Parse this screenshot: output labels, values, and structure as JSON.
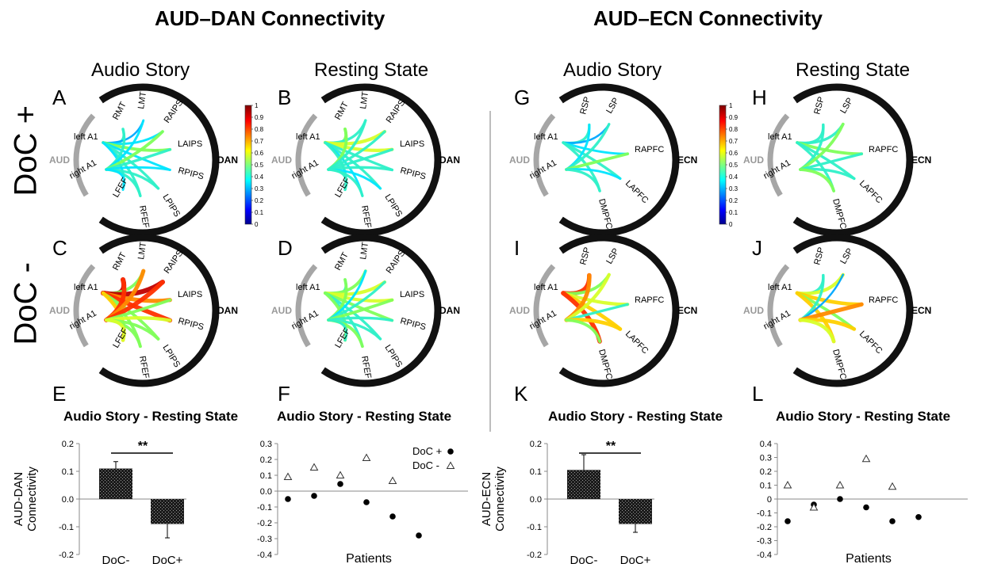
{
  "titles": {
    "dan": "AUD–DAN Connectivity",
    "ecn": "AUD–ECN Connectivity"
  },
  "columns": [
    "Audio Story",
    "Resting State",
    "Audio Story",
    "Resting State"
  ],
  "rows": [
    "DoC +",
    "DoC -"
  ],
  "panel_letters": {
    "A": "A",
    "B": "B",
    "C": "C",
    "D": "D",
    "E": "E",
    "F": "F",
    "G": "G",
    "H": "H",
    "I": "I",
    "J": "J",
    "K": "K",
    "L": "L"
  },
  "colorbar": {
    "ticks": [
      "1",
      "0.9",
      "0.8",
      "0.7",
      "0.6",
      "0.5",
      "0.4",
      "0.3",
      "0.2",
      "0.1",
      "0"
    ]
  },
  "networks": {
    "aud": "AUD",
    "dan": "DAN",
    "ecn": "ECN"
  },
  "nodes": {
    "aud": [
      "left A1",
      "right A1"
    ],
    "dan": [
      "RMT",
      "LMT",
      "RAIPS",
      "LAIPS",
      "RPIPS",
      "LPIPS",
      "RFEF",
      "LFEF"
    ],
    "ecn": [
      "RSP",
      "LSP",
      "RAPFC",
      "LAPFC",
      "DMPFC"
    ]
  },
  "chart_data": [
    {
      "type": "bar",
      "panel": "E",
      "title": "Audio Story - Resting State",
      "ylabel": "AUD-DAN Connectivity",
      "categories": [
        "DoC-",
        "DoC+"
      ],
      "values": [
        0.11,
        -0.09
      ],
      "error": [
        0.025,
        0.05
      ],
      "ylim": [
        -0.2,
        0.2
      ],
      "yticks": [
        "0.2",
        "0.1",
        "0.0",
        "-0.1",
        "-0.2"
      ],
      "significance": "**"
    },
    {
      "type": "scatter",
      "panel": "F",
      "title": "Audio Story - Resting State",
      "xlabel": "Patients",
      "ylim": [
        -0.4,
        0.3
      ],
      "yticks": [
        "0.3",
        "0.2",
        "0.1",
        "0.0",
        "-0.1",
        "-0.2",
        "-0.3",
        "-0.4"
      ],
      "legend": "top-right",
      "series": [
        {
          "name": "DoC +",
          "marker": "circle",
          "x": [
            1,
            2,
            3,
            4,
            5,
            6
          ],
          "values": [
            -0.05,
            -0.03,
            0.045,
            -0.07,
            -0.16,
            -0.28
          ]
        },
        {
          "name": "DoC -",
          "marker": "triangle",
          "x": [
            1,
            2,
            3,
            4,
            5
          ],
          "values": [
            0.09,
            0.15,
            0.1,
            0.21,
            0.065
          ]
        }
      ]
    },
    {
      "type": "bar",
      "panel": "K",
      "title": "Audio Story - Resting State",
      "ylabel": "AUD-ECN Connectivity",
      "categories": [
        "DoC-",
        "DoC+"
      ],
      "values": [
        0.105,
        -0.09
      ],
      "error": [
        0.055,
        0.03
      ],
      "ylim": [
        -0.2,
        0.2
      ],
      "yticks": [
        "0.2",
        "0.1",
        "0.0",
        "-0.1",
        "-0.2"
      ],
      "significance": "**"
    },
    {
      "type": "scatter",
      "panel": "L",
      "title": "Audio Story - Resting State",
      "xlabel": "Patients",
      "ylim": [
        -0.4,
        0.4
      ],
      "yticks": [
        "0.4",
        "0.3",
        "0.2",
        "0.1",
        "0",
        "-0.1",
        "-0.2",
        "-0.3",
        "-0.4"
      ],
      "series": [
        {
          "name": "DoC +",
          "marker": "circle",
          "x": [
            1,
            2,
            3,
            4,
            5,
            6
          ],
          "values": [
            -0.16,
            -0.04,
            0.0,
            -0.06,
            -0.16,
            -0.13
          ]
        },
        {
          "name": "DoC -",
          "marker": "triangle",
          "x": [
            1,
            2,
            3,
            4,
            5
          ],
          "values": [
            0.1,
            -0.06,
            0.1,
            0.29,
            0.09
          ]
        }
      ]
    }
  ]
}
